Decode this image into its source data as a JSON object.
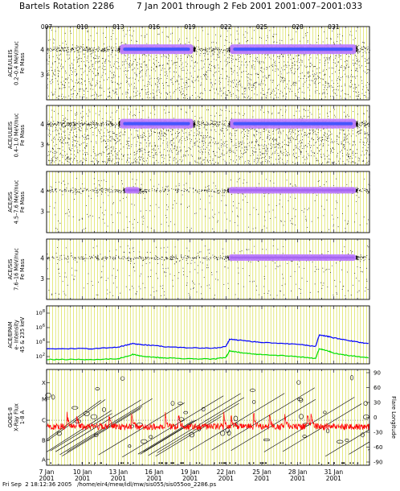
{
  "header": {
    "title": "Bartels Rotation 2286",
    "date_range": "7 Jan 2001 through 2 Feb 2001",
    "doy_range": "2001:007–2001:033"
  },
  "footer": {
    "timestamp": "Fri Sep  2 18:12:36 2005",
    "path": "/home/eir4/mew/idl/mw/sis055/sis055oo_2286.ps"
  },
  "colors": {
    "frame": "#000000",
    "grid": "#c8d000",
    "dense_purple": "#c080ff",
    "core_blue": "#3050ff",
    "line_blue": "#0000ff",
    "line_green": "#00e000",
    "xray_red": "#ff0000"
  },
  "chart_data": {
    "type": "multi-panel time series",
    "time_axis": {
      "range": [
        "2001-01-07",
        "2001-02-03"
      ],
      "doy_top_labels": [
        "007",
        "010",
        "013",
        "016",
        "019",
        "022",
        "025",
        "028",
        "031"
      ],
      "date_ticks": [
        {
          "day": "7 Jan",
          "year": "2001"
        },
        {
          "day": "10 Jan",
          "year": "2001"
        },
        {
          "day": "13 Jan",
          "year": "2001"
        },
        {
          "day": "16 Jan",
          "year": "2001"
        },
        {
          "day": "19 Jan",
          "year": "2001"
        },
        {
          "day": "22 Jan",
          "year": "2001"
        },
        {
          "day": "25 Jan",
          "year": "2001"
        },
        {
          "day": "28 Jan",
          "year": "2001"
        },
        {
          "day": "31 Jan",
          "year": "2001"
        }
      ]
    },
    "panels": [
      {
        "type": "scatter",
        "ylabel": [
          "ACE/ULEIS",
          "0.2–0.4 MeV/nuc",
          "Fe Mass"
        ],
        "yticks": [
          "4",
          "3"
        ],
        "dense_intervals_days": [
          [
            6.0,
            12.4
          ],
          [
            15.2,
            26.0
          ]
        ],
        "sparse_intervals_days": [
          [
            0,
            6.0
          ],
          [
            12.4,
            15.2
          ]
        ]
      },
      {
        "type": "scatter",
        "ylabel": [
          "ACE/ULEIS",
          "0.4–1.0 MeV/nuc",
          "Fe Mass"
        ],
        "yticks": [
          "4",
          "3"
        ],
        "dense_intervals_days": [
          [
            6.0,
            12.4
          ],
          [
            15.2,
            26.0
          ]
        ],
        "sparse_intervals_days": [
          [
            0,
            6.0
          ],
          [
            12.4,
            15.2
          ]
        ]
      },
      {
        "type": "scatter",
        "ylabel": [
          "ACE/SIS",
          "4.5–7.6 MeV/nuc",
          "Fe Mass"
        ],
        "yticks": [
          "4",
          "3"
        ],
        "dense_intervals_days": [
          [
            6.4,
            7.9
          ],
          [
            15.1,
            26.0
          ]
        ],
        "sparse_intervals_days": [
          [
            0,
            6.4
          ],
          [
            7.9,
            15.1
          ]
        ]
      },
      {
        "type": "scatter",
        "ylabel": [
          "ACE/SIS",
          "7.6–16 MeV/nuc",
          "Fe Mass"
        ],
        "yticks": [
          "4",
          "3"
        ],
        "dense_intervals_days": [
          [
            15.1,
            26.0
          ]
        ],
        "sparse_intervals_days": [
          [
            0,
            15.1
          ]
        ]
      },
      {
        "type": "line",
        "ylabel": [
          "ACE/EPAM",
          "e- Intensity",
          "45 & 235 keV"
        ],
        "log_scale": true,
        "ylim_exponent": [
          1,
          9
        ],
        "ytick_exponents": [
          2,
          4,
          6,
          8
        ],
        "series": [
          {
            "color": "blue",
            "x_days": [
              0,
              2,
              4,
              6,
              7.2,
              8,
              9,
              10,
              12,
              14,
              15,
              15.3,
              16,
              17,
              18,
              20,
              21.5,
              22.5,
              22.8,
              23.5,
              24,
              25,
              26,
              27
            ],
            "y_exponent": [
              3.1,
              3.1,
              3.1,
              3.3,
              3.8,
              3.65,
              3.5,
              3.35,
              3.2,
              3.15,
              3.4,
              4.4,
              4.3,
              4.1,
              3.95,
              3.8,
              3.6,
              3.4,
              5.0,
              4.8,
              4.6,
              4.3,
              4.0,
              3.8
            ]
          },
          {
            "color": "green",
            "x_days": [
              0,
              2,
              4,
              6,
              7.2,
              8,
              9,
              10,
              12,
              14,
              15,
              15.3,
              16,
              17,
              18,
              20,
              21.5,
              22.5,
              22.8,
              23.5,
              24,
              25,
              26,
              27
            ],
            "y_exponent": [
              1.6,
              1.6,
              1.6,
              1.7,
              2.3,
              2.05,
              1.9,
              1.8,
              1.7,
              1.65,
              1.9,
              2.8,
              2.6,
              2.4,
              2.25,
              2.1,
              1.9,
              1.75,
              3.1,
              2.8,
              2.5,
              2.2,
              2.0,
              1.85
            ]
          }
        ]
      },
      {
        "type": "line",
        "ylabel": [
          "GOES-8",
          "X-Ray Flux",
          "1-8 A"
        ],
        "yticks_left": [
          "X",
          "M",
          "C",
          "B",
          "A"
        ],
        "yticks_right_label": "Flare Longitude",
        "yticks_right": [
          "90",
          "60",
          "30",
          "0",
          "-30",
          "-60",
          "-90"
        ],
        "series": [
          {
            "color": "red",
            "description_level": "C",
            "flare_spike_days": [
              1.7,
              2.5,
              5.2,
              7.1,
              9.9,
              11.0,
              14.8,
              15.4,
              17.3,
              18.6,
              19.9,
              21.8,
              22.1
            ]
          }
        ]
      }
    ]
  }
}
